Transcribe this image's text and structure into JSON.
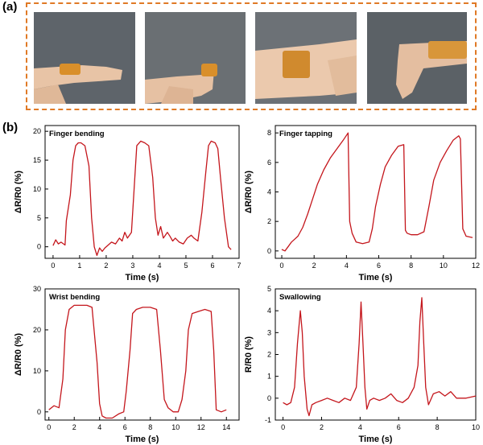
{
  "panels": {
    "a": "(a)",
    "b": "(b)"
  },
  "photos": [
    {
      "name": "finger-extended-photo",
      "bg": "#5e646a",
      "skin": "#e8c4a6",
      "tape": "#d98f2a"
    },
    {
      "name": "finger-bent-photo",
      "bg": "#6a6f73",
      "skin": "#e6c1a3",
      "tape": "#d98f2a"
    },
    {
      "name": "wrist-photo",
      "bg": "#6c7176",
      "skin": "#ebc9ad",
      "tape": "#d08a2e"
    },
    {
      "name": "wrist-bent-photo",
      "bg": "#5b6166",
      "skin": "#e4bea0",
      "tape": "#d8963a"
    }
  ],
  "chart_data": [
    {
      "type": "line",
      "title": "Finger bending",
      "xlabel": "Time (s)",
      "ylabel": "ΔR/R0 (%)",
      "xlim": [
        -0.3,
        7
      ],
      "ylim": [
        -2,
        21
      ],
      "xticks": [
        0,
        1,
        2,
        3,
        4,
        5,
        6,
        7
      ],
      "yticks": [
        0,
        5,
        10,
        15,
        20
      ],
      "line_color": "#c4161c",
      "series": [
        {
          "x": [
            0,
            0.1,
            0.2,
            0.3,
            0.45,
            0.5,
            0.65,
            0.75,
            0.85,
            0.95,
            1.05,
            1.2,
            1.35,
            1.45,
            1.55,
            1.65,
            1.75,
            1.85,
            1.95,
            2.05,
            2.2,
            2.35,
            2.5,
            2.6,
            2.7,
            2.8,
            2.95,
            3.05,
            3.15,
            3.3,
            3.45,
            3.6,
            3.75,
            3.85,
            3.95,
            4.05,
            4.15,
            4.3,
            4.4,
            4.5,
            4.6,
            4.75,
            4.9,
            5.05,
            5.2,
            5.3,
            5.45,
            5.6,
            5.75,
            5.85,
            5.95,
            6.1,
            6.2,
            6.3,
            6.45,
            6.6,
            6.7
          ],
          "y": [
            0.2,
            1.2,
            0.5,
            0.8,
            0.3,
            4.5,
            9,
            15,
            17.5,
            18,
            18,
            17.5,
            14,
            5,
            0,
            -1.5,
            -0.2,
            -0.8,
            -0.2,
            0.2,
            0.8,
            0.5,
            1.5,
            1,
            2.5,
            1.5,
            2.5,
            10,
            17.5,
            18.3,
            18,
            17.5,
            12,
            5,
            2,
            3.5,
            1.5,
            2.5,
            1.8,
            1,
            1.5,
            0.8,
            0.5,
            1.5,
            2,
            1.5,
            1,
            6,
            13,
            17.5,
            18.3,
            18,
            17,
            12,
            5,
            0,
            -0.5
          ]
        }
      ]
    },
    {
      "type": "line",
      "title": "Finger tapping",
      "xlabel": "Time (s)",
      "ylabel": "ΔR/R0 (%)",
      "xlim": [
        -0.4,
        12
      ],
      "ylim": [
        -0.5,
        8.5
      ],
      "xticks": [
        0,
        2,
        4,
        6,
        8,
        10,
        12
      ],
      "yticks": [
        0,
        2,
        4,
        6,
        8
      ],
      "line_color": "#c4161c",
      "series": [
        {
          "x": [
            0,
            0.2,
            0.4,
            0.6,
            0.8,
            1,
            1.3,
            1.6,
            1.9,
            2.2,
            2.6,
            3,
            3.4,
            3.8,
            4.1,
            4.2,
            4.35,
            4.6,
            5,
            5.4,
            5.6,
            5.8,
            6.1,
            6.4,
            6.8,
            7.2,
            7.55,
            7.65,
            7.75,
            8,
            8.4,
            8.8,
            9.1,
            9.4,
            9.8,
            10.2,
            10.6,
            10.95,
            11.05,
            11.2,
            11.4,
            11.8
          ],
          "y": [
            0.1,
            0,
            0.3,
            0.6,
            0.8,
            1,
            1.6,
            2.5,
            3.5,
            4.5,
            5.5,
            6.3,
            6.9,
            7.5,
            8,
            2,
            1.2,
            0.6,
            0.5,
            0.6,
            1.5,
            3,
            4.5,
            5.7,
            6.5,
            7.1,
            7.2,
            1.4,
            1.2,
            1.1,
            1.1,
            1.3,
            3,
            4.8,
            6,
            6.8,
            7.5,
            7.8,
            7.6,
            1.5,
            1,
            0.9
          ]
        }
      ]
    },
    {
      "type": "line",
      "title": "Wrist bending",
      "xlabel": "Time (s)",
      "ylabel": "ΔR/R0 (%)",
      "xlim": [
        -0.3,
        15
      ],
      "ylim": [
        -2,
        30
      ],
      "xticks": [
        0,
        2,
        4,
        6,
        8,
        10,
        12,
        14
      ],
      "yticks": [
        0,
        10,
        20,
        30
      ],
      "line_color": "#c4161c",
      "series": [
        {
          "x": [
            0,
            0.4,
            0.8,
            1.1,
            1.3,
            1.6,
            2,
            2.5,
            3,
            3.4,
            3.8,
            4,
            4.2,
            4.5,
            5,
            5.5,
            5.9,
            6.1,
            6.4,
            6.6,
            6.9,
            7.4,
            8,
            8.5,
            8.8,
            9.1,
            9.4,
            9.8,
            10.2,
            10.5,
            10.8,
            11,
            11.3,
            11.8,
            12.3,
            12.8,
            13,
            13.2,
            13.6,
            14
          ],
          "y": [
            0.5,
            1.5,
            1,
            8,
            20,
            25,
            26,
            26,
            26,
            25.5,
            12,
            2,
            -1,
            -1.5,
            -1.5,
            -0.5,
            0,
            5,
            15,
            24,
            25,
            25.5,
            25.5,
            25,
            15,
            3,
            1,
            0,
            0,
            3,
            10,
            20,
            24,
            24.5,
            25,
            24.5,
            15,
            0.5,
            0,
            0.5
          ]
        }
      ]
    },
    {
      "type": "line",
      "title": "Swallowing",
      "xlabel": "Time (s)",
      "ylabel": "R/R0 (%)",
      "xlim": [
        -0.4,
        10
      ],
      "ylim": [
        -1,
        5
      ],
      "xticks": [
        0,
        2,
        4,
        6,
        8,
        10
      ],
      "yticks": [
        -1,
        0,
        1,
        2,
        3,
        4,
        5
      ],
      "line_color": "#c4161c",
      "series": [
        {
          "x": [
            0,
            0.2,
            0.4,
            0.6,
            0.75,
            0.9,
            1,
            1.1,
            1.25,
            1.35,
            1.5,
            1.7,
            2,
            2.3,
            2.6,
            2.9,
            3.2,
            3.5,
            3.8,
            3.95,
            4.05,
            4.15,
            4.25,
            4.35,
            4.5,
            4.7,
            5,
            5.3,
            5.6,
            5.9,
            6.2,
            6.5,
            6.8,
            7,
            7.1,
            7.2,
            7.3,
            7.4,
            7.55,
            7.8,
            8.1,
            8.4,
            8.7,
            9,
            9.5,
            10
          ],
          "y": [
            -0.2,
            -0.3,
            -0.2,
            0.5,
            2.5,
            4,
            3,
            1,
            -0.5,
            -0.8,
            -0.3,
            -0.2,
            -0.1,
            0,
            -0.1,
            -0.2,
            0,
            -0.1,
            0.5,
            2.5,
            4.4,
            2.5,
            0.5,
            -0.5,
            -0.1,
            0,
            -0.1,
            0,
            0.2,
            -0.1,
            -0.2,
            0,
            0.5,
            1.5,
            3.5,
            4.6,
            2.5,
            0.5,
            -0.3,
            0.2,
            0.3,
            0.1,
            0.3,
            0,
            0,
            0.1
          ]
        }
      ]
    }
  ]
}
